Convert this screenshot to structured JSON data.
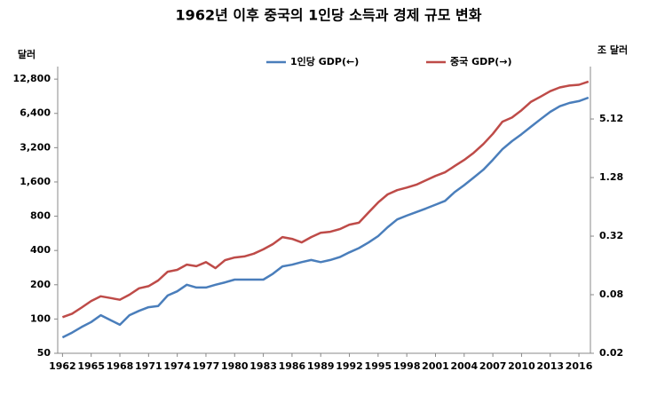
{
  "chart_data": {
    "type": "line",
    "title": "1962년 이후 중국의 1인당 소득과 경제 규모 변화",
    "y_label": "달러",
    "y2_label": "조 달러",
    "x": [
      1962,
      1963,
      1964,
      1965,
      1966,
      1967,
      1968,
      1969,
      1970,
      1971,
      1972,
      1973,
      1974,
      1975,
      1976,
      1977,
      1978,
      1979,
      1980,
      1981,
      1982,
      1983,
      1984,
      1985,
      1986,
      1987,
      1988,
      1989,
      1990,
      1991,
      1992,
      1993,
      1994,
      1995,
      1996,
      1997,
      1998,
      1999,
      2000,
      2001,
      2002,
      2003,
      2004,
      2005,
      2006,
      2007,
      2008,
      2009,
      2010,
      2011,
      2012,
      2013,
      2014,
      2015,
      2016,
      2017
    ],
    "series": [
      {
        "name": "1인당 GDP(←)",
        "color": "#4a7ebb",
        "axis": "y",
        "values": [
          69,
          76,
          85,
          94,
          108,
          98,
          89,
          108,
          118,
          127,
          130,
          161,
          175,
          200,
          189,
          189,
          200,
          210,
          222,
          222,
          222,
          222,
          250,
          290,
          300,
          316,
          330,
          316,
          330,
          350,
          385,
          420,
          470,
          535,
          640,
          750,
          810,
          870,
          935,
          1010,
          1090,
          1300,
          1500,
          1750,
          2050,
          2500,
          3100,
          3650,
          4200,
          4900,
          5700,
          6600,
          7400,
          7900,
          8200,
          8800
        ]
      },
      {
        "name": "중국 GDP(→)",
        "color": "#be4b48",
        "axis": "y2",
        "values": [
          0.047,
          0.051,
          0.059,
          0.069,
          0.077,
          0.074,
          0.071,
          0.08,
          0.093,
          0.098,
          0.112,
          0.138,
          0.144,
          0.163,
          0.157,
          0.173,
          0.15,
          0.181,
          0.193,
          0.198,
          0.211,
          0.234,
          0.265,
          0.313,
          0.3,
          0.276,
          0.313,
          0.347,
          0.355,
          0.378,
          0.42,
          0.44,
          0.56,
          0.71,
          0.86,
          0.95,
          1.01,
          1.08,
          1.2,
          1.33,
          1.45,
          1.68,
          1.94,
          2.3,
          2.83,
          3.6,
          4.8,
          5.3,
          6.3,
          7.7,
          8.7,
          9.9,
          10.8,
          11.3,
          11.5,
          12.4
        ]
      }
    ],
    "xlim": [
      1961.5,
      2017.2
    ],
    "xticks": [
      1962,
      1965,
      1968,
      1971,
      1974,
      1977,
      1980,
      1983,
      1986,
      1989,
      1992,
      1995,
      1998,
      2001,
      2004,
      2007,
      2010,
      2013,
      2016
    ],
    "ylim": [
      50,
      16500
    ],
    "log_y": true,
    "yticks": [
      50,
      100,
      200,
      400,
      800,
      {
        "value": 1600,
        "label": "1,600"
      },
      {
        "value": 3200,
        "label": "3,200"
      },
      {
        "value": 6400,
        "label": "6,400"
      },
      {
        "value": 12800,
        "label": "12,800"
      }
    ],
    "y2lim": [
      0.02,
      17.7
    ],
    "log_y2": true,
    "y2ticks": [
      0.02,
      0.08,
      0.32,
      1.28,
      5.12
    ],
    "grid": false,
    "legend": "top"
  }
}
